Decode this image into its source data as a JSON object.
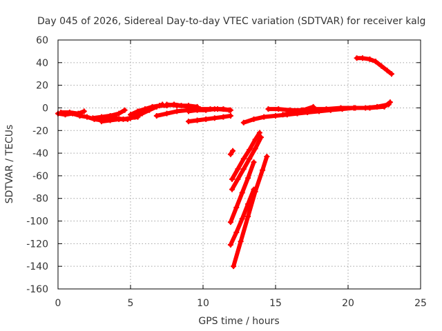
{
  "chart_data": {
    "type": "scatter",
    "title": "Day 045 of 2026, Sidereal Day-to-day VTEC variation (SDTVAR) for receiver kalg",
    "xlabel": "GPS time / hours",
    "ylabel": "SDTVAR / TECUs",
    "xlim": [
      0,
      25
    ],
    "ylim": [
      -160,
      60
    ],
    "xticks": [
      "0",
      "5",
      "10",
      "15",
      "20",
      "25"
    ],
    "yticks": [
      "60",
      "40",
      "20",
      "0",
      "-20",
      "-40",
      "-60",
      "-80",
      "-100",
      "-120",
      "-140",
      "-160"
    ],
    "grid": true,
    "point_color": "#ff0000",
    "marker": "plus",
    "series": [
      {
        "x": [
          0.0,
          0.5,
          1.0,
          1.5,
          2.0,
          2.5,
          3.0,
          3.5,
          4.0,
          4.5,
          5.0,
          5.5
        ],
        "y": [
          -5,
          -6,
          -5,
          -7,
          -8,
          -10,
          -11,
          -10,
          -9,
          -10,
          -9,
          -8
        ]
      },
      {
        "x": [
          0.2,
          0.8,
          1.4,
          1.8
        ],
        "y": [
          -4,
          -4,
          -5,
          -3
        ]
      },
      {
        "x": [
          2.4,
          3.0,
          3.6,
          4.2,
          4.6
        ],
        "y": [
          -9,
          -8,
          -7,
          -5,
          -2
        ]
      },
      {
        "x": [
          3.0,
          3.6,
          4.2,
          4.8,
          5.0
        ],
        "y": [
          -12,
          -11,
          -10,
          -10,
          -9
        ]
      },
      {
        "x": [
          5.0,
          5.5,
          6.0,
          6.5,
          7.0,
          7.5,
          8.0,
          8.5,
          9.0
        ],
        "y": [
          -6,
          -3,
          -1,
          1,
          2,
          2,
          3,
          2,
          1
        ]
      },
      {
        "x": [
          5.3,
          5.8,
          6.3,
          6.8,
          7.2
        ],
        "y": [
          -8,
          -5,
          -2,
          1,
          3
        ]
      },
      {
        "x": [
          6.8,
          7.5,
          8.2,
          9.0,
          9.8,
          10.5,
          11.0,
          11.8
        ],
        "y": [
          -7,
          -5,
          -3,
          -2,
          -1,
          -1,
          -1,
          -2
        ]
      },
      {
        "x": [
          7.5,
          8.2,
          9.0,
          9.6
        ],
        "y": [
          3,
          2,
          2,
          1
        ]
      },
      {
        "x": [
          9.0,
          9.6,
          10.2,
          10.8,
          11.4,
          11.9
        ],
        "y": [
          -3,
          -2,
          -2,
          -1,
          -1,
          -2
        ]
      },
      {
        "x": [
          9.0,
          9.6,
          10.2,
          10.8,
          11.4,
          11.9
        ],
        "y": [
          -12,
          -11,
          -10,
          -9,
          -8,
          -7
        ]
      },
      {
        "x": [
          11.9,
          12.05
        ],
        "y": [
          -41,
          -38
        ]
      },
      {
        "x": [
          12.0,
          12.4,
          12.8,
          13.2,
          13.6,
          13.9
        ],
        "y": [
          -63,
          -54,
          -45,
          -37,
          -28,
          -22
        ]
      },
      {
        "x": [
          12.0,
          12.4,
          12.8,
          13.2,
          13.6,
          14.0
        ],
        "y": [
          -72,
          -63,
          -54,
          -45,
          -36,
          -26
        ]
      },
      {
        "x": [
          11.9,
          12.3,
          12.7,
          13.1,
          13.5
        ],
        "y": [
          -101,
          -88,
          -75,
          -62,
          -48
        ]
      },
      {
        "x": [
          11.9,
          12.3,
          12.7,
          13.1,
          13.5
        ],
        "y": [
          -121,
          -110,
          -98,
          -85,
          -72
        ]
      },
      {
        "x": [
          12.1,
          12.6,
          13.1,
          13.6,
          14.1,
          14.4
        ],
        "y": [
          -140,
          -118,
          -96,
          -74,
          -55,
          -43
        ]
      },
      {
        "x": [
          12.8,
          13.5,
          14.2,
          15.0,
          15.8,
          16.5,
          17.2,
          18.0,
          18.8,
          19.6,
          20.4,
          21.2,
          22.0,
          22.8
        ],
        "y": [
          -13,
          -10,
          -8,
          -7,
          -6,
          -5,
          -4,
          -3,
          -2,
          -1,
          0,
          0,
          1,
          3
        ]
      },
      {
        "x": [
          14.5,
          15.2,
          16.0,
          16.8,
          17.6,
          18.5,
          19.5,
          20.5,
          21.5,
          22.5,
          22.9
        ],
        "y": [
          -1,
          -1,
          -2,
          -2,
          -1,
          -1,
          0,
          0,
          0,
          1,
          5
        ]
      },
      {
        "x": [
          15.5,
          16.2,
          16.9,
          17.6
        ],
        "y": [
          -6,
          -4,
          -2,
          1
        ]
      },
      {
        "x": [
          20.6,
          21.0,
          21.5,
          21.9,
          22.3,
          22.7,
          23.0
        ],
        "y": [
          44,
          44,
          43,
          41,
          37,
          33,
          30
        ]
      }
    ]
  }
}
